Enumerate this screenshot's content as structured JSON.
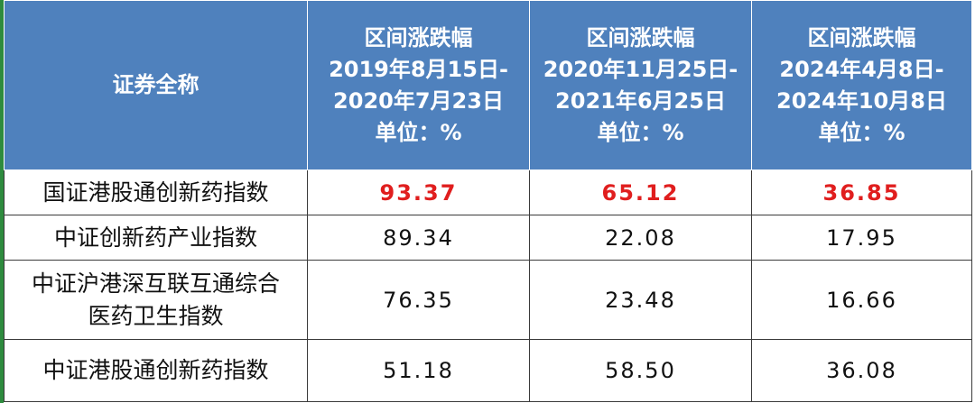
{
  "table": {
    "header": {
      "name_col": "证券全称",
      "periods": [
        {
          "title": "区间涨跌幅",
          "range_start": "2019年8月15日-",
          "range_end": "2020年7月23日",
          "unit": "单位：%"
        },
        {
          "title": "区间涨跌幅",
          "range_start": "2020年11月25日-",
          "range_end": "2021年6月25日",
          "unit": "单位：%"
        },
        {
          "title": "区间涨跌幅",
          "range_start": "2024年4月8日-",
          "range_end": "2024年10月8日",
          "unit": "单位：%"
        }
      ]
    },
    "rows": [
      {
        "name_line1": "国证港股通创新药指数",
        "name_line2": "",
        "values": [
          "93.37",
          "65.12",
          "36.85"
        ],
        "highlight": true
      },
      {
        "name_line1": "中证创新药产业指数",
        "name_line2": "",
        "values": [
          "89.34",
          "22.08",
          "17.95"
        ],
        "highlight": false
      },
      {
        "name_line1": "中证沪港深互联互通综合",
        "name_line2": "医药卫生指数",
        "values": [
          "76.35",
          "23.48",
          "16.66"
        ],
        "highlight": false
      },
      {
        "name_line1": "中证港股通创新药指数",
        "name_line2": "",
        "values": [
          "51.18",
          "58.50",
          "36.08"
        ],
        "highlight": false
      }
    ]
  },
  "colors": {
    "header_bg": "#4f81bd",
    "header_text": "#ffffff",
    "highlight_text": "#e01e1e",
    "left_edge": "#2e8b3e"
  }
}
